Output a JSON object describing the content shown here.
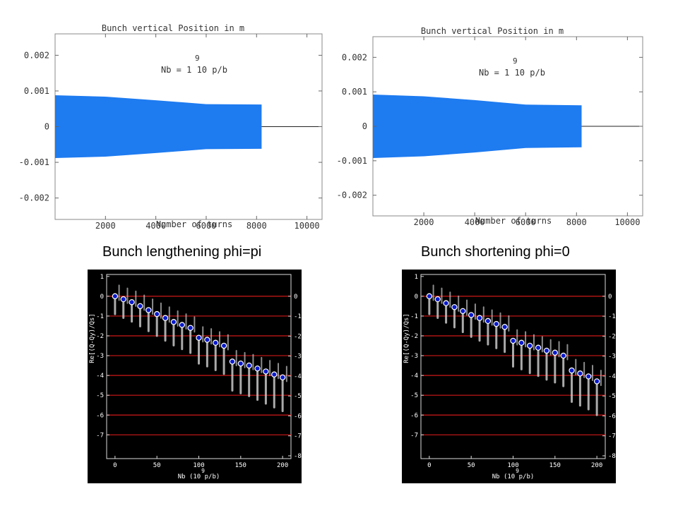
{
  "captions": {
    "left": "Bunch lengthening phi=pi",
    "right": "Bunch shortening phi=0"
  },
  "colors": {
    "fill": "#1e7bf0",
    "marker": "#0a1acc",
    "red_line": "#d01818",
    "panel_bg": "#000000",
    "gray": "#c8c8c8"
  },
  "chart_data": [
    {
      "type": "area",
      "title": "Bunch vertical Position in m",
      "annotation": {
        "exponent": "9",
        "text": "Nb = 1 10  p/b"
      },
      "xlabel": "Number of turns",
      "ylabel": "",
      "xlim": [
        0,
        10600
      ],
      "ylim": [
        -0.0026,
        0.0026
      ],
      "xticks": [
        "2000",
        "4000",
        "6000",
        "8000",
        "10000"
      ],
      "xtick_values": [
        2000,
        4000,
        6000,
        8000,
        10000
      ],
      "yticks": [
        "0.002",
        "0.001",
        "0",
        "-0.001",
        "-0.002"
      ],
      "ytick_values": [
        0.002,
        0.001,
        0,
        -0.001,
        -0.002
      ],
      "envelope_x": [
        0,
        2000,
        4000,
        6000,
        8200
      ],
      "envelope_amp": [
        0.00088,
        0.00084,
        0.00074,
        0.00063,
        0.00062
      ],
      "fill_end": 8200,
      "grid": false
    },
    {
      "type": "area",
      "title": "Bunch vertical Position in m",
      "annotation": {
        "exponent": "9",
        "text": "Nb = 1 10  p/b"
      },
      "xlabel": "Number of turns",
      "ylabel": "",
      "xlim": [
        0,
        10600
      ],
      "ylim": [
        -0.0026,
        0.0026
      ],
      "xticks": [
        "2000",
        "4000",
        "6000",
        "8000",
        "10000"
      ],
      "xtick_values": [
        2000,
        4000,
        6000,
        8000,
        10000
      ],
      "yticks": [
        "0.002",
        "0.001",
        "0",
        "-0.001",
        "-0.002"
      ],
      "ytick_values": [
        0.002,
        0.001,
        0,
        -0.001,
        -0.002
      ],
      "envelope_x": [
        0,
        2000,
        4000,
        6000,
        8200
      ],
      "envelope_amp": [
        0.00092,
        0.00087,
        0.00076,
        0.00063,
        0.00061
      ],
      "fill_end": 8200,
      "grid": false
    },
    {
      "type": "scatter",
      "xlabel": "Nb (10  p/b)",
      "xlabel_exponent": "9",
      "ylabel": "Re[(Q-Qy)/Qs]",
      "xlim": [
        -10,
        210
      ],
      "ylim": [
        -8.2,
        1.1
      ],
      "xticks": [
        "0",
        "50",
        "100",
        "150",
        "200"
      ],
      "xtick_values": [
        0,
        50,
        100,
        150,
        200
      ],
      "yticks": [
        "1",
        "0",
        "-1",
        "-2",
        "-3",
        "-4",
        "-5",
        "-6",
        "-7"
      ],
      "ytick_values": [
        1,
        0,
        -1,
        -2,
        -3,
        -4,
        -5,
        -6,
        -7
      ],
      "right_yticks": [
        "0",
        "-1",
        "-2",
        "-3",
        "-4",
        "-5",
        "-6",
        "-7",
        "-8"
      ],
      "right_ytick_values": [
        0,
        -1,
        -2,
        -3,
        -4,
        -5,
        -6,
        -7,
        -8
      ],
      "hlines": [
        0,
        -1,
        -2,
        -3,
        -4,
        -5,
        -6,
        -7
      ],
      "series": [
        {
          "x": [
            0,
            10,
            20,
            30,
            40,
            50,
            60,
            70,
            80,
            90,
            100,
            110,
            120,
            130,
            140,
            150,
            160,
            170,
            180,
            190,
            200
          ],
          "y": [
            0,
            -0.15,
            -0.3,
            -0.5,
            -0.7,
            -0.9,
            -1.1,
            -1.3,
            -1.45,
            -1.6,
            -2.1,
            -2.2,
            -2.35,
            -2.5,
            -3.3,
            -3.4,
            -3.5,
            -3.65,
            -3.8,
            -3.95,
            -4.1
          ]
        }
      ]
    },
    {
      "type": "scatter",
      "xlabel": "Nb (10  p/b)",
      "xlabel_exponent": "9",
      "ylabel": "Re[(Q-Qy)/Qs]",
      "xlim": [
        -10,
        210
      ],
      "ylim": [
        -8.2,
        1.1
      ],
      "xticks": [
        "0",
        "50",
        "100",
        "150",
        "200"
      ],
      "xtick_values": [
        0,
        50,
        100,
        150,
        200
      ],
      "yticks": [
        "1",
        "0",
        "-1",
        "-2",
        "-3",
        "-4",
        "-5",
        "-6",
        "-7"
      ],
      "ytick_values": [
        1,
        0,
        -1,
        -2,
        -3,
        -4,
        -5,
        -6,
        -7
      ],
      "right_yticks": [
        "0",
        "-1",
        "-2",
        "-3",
        "-4",
        "-5",
        "-6",
        "-7",
        "-8"
      ],
      "right_ytick_values": [
        0,
        -1,
        -2,
        -3,
        -4,
        -5,
        -6,
        -7,
        -8
      ],
      "hlines": [
        0,
        -1,
        -2,
        -3,
        -4,
        -5,
        -6,
        -7
      ],
      "series": [
        {
          "x": [
            0,
            10,
            20,
            30,
            40,
            50,
            60,
            70,
            80,
            90,
            100,
            110,
            120,
            130,
            140,
            150,
            160,
            170,
            180,
            190,
            200
          ],
          "y": [
            0,
            -0.15,
            -0.35,
            -0.55,
            -0.75,
            -0.95,
            -1.1,
            -1.25,
            -1.4,
            -1.55,
            -2.25,
            -2.35,
            -2.5,
            -2.6,
            -2.75,
            -2.85,
            -3.0,
            -3.75,
            -3.9,
            -4.05,
            -4.3
          ]
        }
      ]
    }
  ]
}
